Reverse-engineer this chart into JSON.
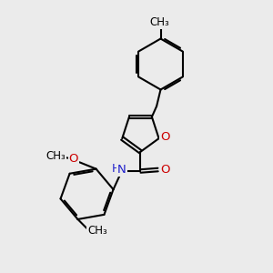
{
  "background_color": "#ebebeb",
  "bond_color": "#000000",
  "bond_width": 1.5,
  "N_color": "#2020cc",
  "O_color": "#cc0000",
  "font_size": 9.5,
  "figsize": [
    3.0,
    3.0
  ],
  "dpi": 100,
  "xlim": [
    0,
    10
  ],
  "ylim": [
    0,
    10
  ]
}
